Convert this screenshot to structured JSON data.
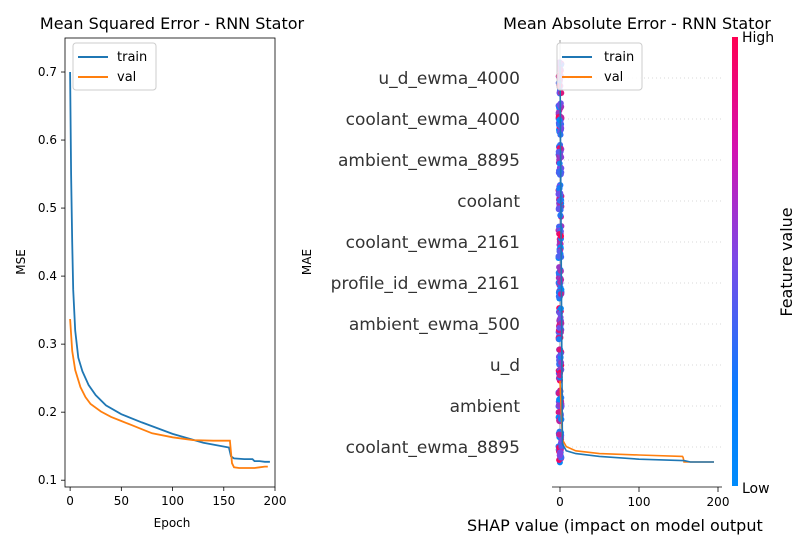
{
  "colors": {
    "train": "#1f77b4",
    "val": "#ff7f0e",
    "shap_low": "#008bfb",
    "shap_high": "#ff0052",
    "grid": "#cccccc"
  },
  "chart_data": [
    {
      "type": "line",
      "title": "Mean Squared Error - RNN Stator",
      "xlabel": "Epoch",
      "ylabel": "MSE",
      "xlim": [
        -5,
        200
      ],
      "ylim": [
        0.09,
        0.75
      ],
      "xticks": [
        0,
        50,
        100,
        150,
        200
      ],
      "yticks": [
        0.1,
        0.2,
        0.3,
        0.4,
        0.5,
        0.6,
        0.7
      ],
      "legend": {
        "position": "top-left",
        "entries": [
          "train",
          "val"
        ]
      },
      "series": [
        {
          "name": "train",
          "x": [
            0,
            1,
            2,
            3,
            5,
            8,
            12,
            18,
            25,
            35,
            50,
            70,
            100,
            130,
            155,
            157,
            160,
            170,
            178,
            180,
            185,
            190,
            195
          ],
          "y": [
            0.7,
            0.55,
            0.45,
            0.38,
            0.32,
            0.28,
            0.26,
            0.24,
            0.225,
            0.21,
            0.197,
            0.185,
            0.168,
            0.155,
            0.148,
            0.135,
            0.132,
            0.131,
            0.131,
            0.128,
            0.128,
            0.127,
            0.127
          ]
        },
        {
          "name": "val",
          "x": [
            0,
            2,
            5,
            10,
            15,
            20,
            30,
            40,
            50,
            60,
            70,
            80,
            100,
            120,
            140,
            154,
            156,
            158,
            160,
            165,
            170,
            180,
            185,
            190,
            193
          ],
          "y": [
            0.337,
            0.29,
            0.262,
            0.237,
            0.222,
            0.212,
            0.201,
            0.193,
            0.187,
            0.181,
            0.175,
            0.169,
            0.163,
            0.159,
            0.158,
            0.158,
            0.158,
            0.125,
            0.119,
            0.118,
            0.118,
            0.118,
            0.119,
            0.12,
            0.12
          ]
        }
      ]
    },
    {
      "type": "line",
      "title": "Mean Absolute Error - RNN Stator",
      "ylabel": "MAE",
      "legend": {
        "position": "top-left",
        "entries": [
          "train",
          "val"
        ]
      },
      "series": [
        {
          "name": "train",
          "x": [
            0,
            3,
            8,
            20,
            50,
            100,
            155,
            157,
            165,
            180,
            195
          ],
          "y": [
            0.53,
            0.255,
            0.25,
            0.248,
            0.246,
            0.244,
            0.243,
            0.243,
            0.242,
            0.242,
            0.242
          ]
        },
        {
          "name": "val",
          "x": [
            0,
            3,
            8,
            20,
            50,
            100,
            155,
            156,
            157,
            165,
            180,
            195
          ],
          "y": [
            0.3,
            0.258,
            0.253,
            0.25,
            0.248,
            0.247,
            0.246,
            0.245,
            0.242,
            0.242,
            0.242,
            0.242
          ]
        }
      ]
    },
    {
      "type": "scatter",
      "subtype": "shap-beeswarm",
      "xlabel": "SHAP value (impact on model output",
      "xticks": [
        0,
        100,
        200
      ],
      "features": [
        "u_d_ewma_4000",
        "coolant_ewma_4000",
        "ambient_ewma_8895",
        "coolant",
        "coolant_ewma_2161",
        "profile_id_ewma_2161",
        "ambient_ewma_500",
        "u_d",
        "ambient",
        "coolant_ewma_8895"
      ],
      "colorbar": {
        "label": "Feature value",
        "high_label": "High",
        "low_label": "Low"
      }
    }
  ]
}
